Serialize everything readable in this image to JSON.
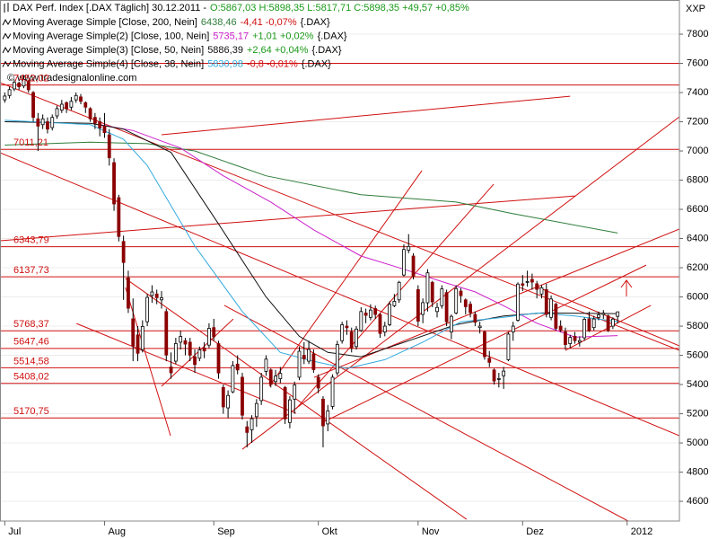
{
  "chart_data": {
    "type": "candlestick",
    "header": {
      "instrument": "DAX Perf. Index [.DAX Täglich] 30.12.2011 -",
      "quote": "O:5867,03 H:5898,35 L:5817,71 C:5898,35 +49,57 +0,85%",
      "quote_color": "#1a9a1a"
    },
    "credit": "© www.tradesignalonline.com",
    "axis_label": "XXP",
    "xlim": [
      -1,
      142
    ],
    "ylim": [
      4465,
      8034
    ],
    "yticks": [
      4600,
      4800,
      5000,
      5200,
      5400,
      5600,
      5800,
      6000,
      6200,
      6400,
      6600,
      6800,
      7000,
      7200,
      7400,
      7600,
      7800
    ],
    "xticks": [
      {
        "value": 0,
        "label": "Jul"
      },
      {
        "value": 21,
        "label": "Aug"
      },
      {
        "value": 44,
        "label": "Sep"
      },
      {
        "value": 66,
        "label": "Okt"
      },
      {
        "value": 87,
        "label": "Nov"
      },
      {
        "value": 109,
        "label": "Dez"
      },
      {
        "value": 131,
        "label": "2012"
      }
    ],
    "grid": true,
    "up_color": "#ffffff",
    "down_color": "#8b0000",
    "candles": [
      [
        7350,
        7400,
        7330,
        7376
      ],
      [
        7380,
        7440,
        7360,
        7420
      ],
      [
        7425,
        7490,
        7410,
        7470
      ],
      [
        7465,
        7475,
        7420,
        7440
      ],
      [
        7445,
        7520,
        7430,
        7490
      ],
      [
        7480,
        7485,
        7400,
        7419
      ],
      [
        7400,
        7410,
        7200,
        7230
      ],
      [
        7220,
        7260,
        7000,
        7170
      ],
      [
        7180,
        7250,
        7150,
        7220
      ],
      [
        7200,
        7230,
        7120,
        7150
      ],
      [
        7160,
        7250,
        7140,
        7230
      ],
      [
        7240,
        7310,
        7220,
        7290
      ],
      [
        7280,
        7350,
        7260,
        7320
      ],
      [
        7330,
        7340,
        7260,
        7290
      ],
      [
        7300,
        7370,
        7280,
        7340
      ],
      [
        7350,
        7400,
        7330,
        7380
      ],
      [
        7370,
        7390,
        7320,
        7340
      ],
      [
        7330,
        7340,
        7260,
        7300
      ],
      [
        7290,
        7300,
        7200,
        7220
      ],
      [
        7230,
        7260,
        7150,
        7190
      ],
      [
        7200,
        7230,
        7100,
        7158
      ],
      [
        7170,
        7260,
        7090,
        7126
      ],
      [
        7110,
        7150,
        6900,
        6953
      ],
      [
        6920,
        6950,
        6590,
        6637
      ],
      [
        6680,
        6700,
        6380,
        6414
      ],
      [
        6380,
        6420,
        5980,
        6236
      ],
      [
        6130,
        6180,
        5890,
        5923
      ],
      [
        5850,
        5990,
        5560,
        5664
      ],
      [
        5740,
        5800,
        5560,
        5614
      ],
      [
        5640,
        5840,
        5620,
        5798
      ],
      [
        5830,
        6020,
        5800,
        5997
      ],
      [
        6010,
        6080,
        5960,
        6034
      ],
      [
        6020,
        6050,
        5950,
        5995
      ],
      [
        5980,
        6040,
        5920,
        5994
      ],
      [
        5900,
        5920,
        5560,
        5602
      ],
      [
        5520,
        5620,
        5440,
        5480
      ],
      [
        5560,
        5720,
        5540,
        5681
      ],
      [
        5690,
        5770,
        5640,
        5729
      ],
      [
        5700,
        5720,
        5600,
        5677
      ],
      [
        5690,
        5720,
        5560,
        5601
      ],
      [
        5590,
        5640,
        5480,
        5537
      ],
      [
        5580,
        5660,
        5560,
        5637
      ],
      [
        5650,
        5690,
        5580,
        5630
      ],
      [
        5670,
        5820,
        5650,
        5785
      ],
      [
        5790,
        5850,
        5700,
        5727
      ],
      [
        5680,
        5700,
        5440,
        5479
      ],
      [
        5380,
        5400,
        5200,
        5247
      ],
      [
        5240,
        5360,
        5170,
        5325
      ],
      [
        5350,
        5560,
        5340,
        5530
      ],
      [
        5540,
        5600,
        5470,
        5500
      ],
      [
        5450,
        5480,
        5160,
        5190
      ],
      [
        5110,
        5150,
        4970,
        5072
      ],
      [
        5090,
        5190,
        5000,
        5166
      ],
      [
        5180,
        5300,
        5110,
        5270
      ],
      [
        5290,
        5480,
        5260,
        5450
      ],
      [
        5490,
        5600,
        5460,
        5574
      ],
      [
        5500,
        5510,
        5380,
        5401
      ],
      [
        5420,
        5500,
        5390,
        5458
      ],
      [
        5440,
        5520,
        5410,
        5476
      ],
      [
        5380,
        5390,
        5130,
        5164
      ],
      [
        5140,
        5320,
        5100,
        5295
      ],
      [
        5300,
        5420,
        5200,
        5397
      ],
      [
        5450,
        5660,
        5430,
        5628
      ],
      [
        5600,
        5690,
        5540,
        5576
      ],
      [
        5560,
        5700,
        5540,
        5640
      ],
      [
        5610,
        5640,
        5480,
        5502
      ],
      [
        5450,
        5470,
        5340,
        5376
      ],
      [
        5300,
        5320,
        4970,
        5117
      ],
      [
        5130,
        5260,
        5080,
        5220
      ],
      [
        5250,
        5470,
        5230,
        5450
      ],
      [
        5480,
        5700,
        5460,
        5675
      ],
      [
        5700,
        5830,
        5680,
        5810
      ],
      [
        5800,
        5840,
        5740,
        5789
      ],
      [
        5760,
        5790,
        5620,
        5650
      ],
      [
        5660,
        5800,
        5640,
        5780
      ],
      [
        5770,
        5930,
        5760,
        5900
      ],
      [
        5890,
        5920,
        5820,
        5874
      ],
      [
        5860,
        5950,
        5840,
        5910
      ],
      [
        5920,
        5940,
        5850,
        5880
      ],
      [
        5880,
        5890,
        5720,
        5750
      ],
      [
        5760,
        5830,
        5730,
        5800
      ],
      [
        5810,
        5970,
        5800,
        5950
      ],
      [
        5940,
        6020,
        5930,
        5970
      ],
      [
        5980,
        6110,
        5960,
        6100
      ],
      [
        6150,
        6360,
        6140,
        6325
      ],
      [
        6320,
        6430,
        6300,
        6346
      ],
      [
        6280,
        6300,
        6120,
        6141
      ],
      [
        6050,
        6080,
        5800,
        5834
      ],
      [
        5880,
        5990,
        5820,
        5961
      ],
      [
        5960,
        6190,
        5900,
        6165
      ],
      [
        6100,
        6110,
        5930,
        5966
      ],
      [
        5900,
        5960,
        5860,
        5928
      ],
      [
        5940,
        6080,
        5920,
        6055
      ],
      [
        6030,
        6050,
        5800,
        5829
      ],
      [
        5760,
        5880,
        5710,
        5867
      ],
      [
        5890,
        6080,
        5880,
        6057
      ],
      [
        6040,
        6060,
        5960,
        6009
      ],
      [
        5980,
        5990,
        5880,
        5933
      ],
      [
        5950,
        5970,
        5860,
        5893
      ],
      [
        5880,
        5900,
        5800,
        5827
      ],
      [
        5790,
        5830,
        5750,
        5800
      ],
      [
        5760,
        5770,
        5570,
        5591
      ],
      [
        5580,
        5630,
        5520,
        5552
      ],
      [
        5500,
        5510,
        5400,
        5424
      ],
      [
        5440,
        5480,
        5380,
        5441
      ],
      [
        5460,
        5520,
        5370,
        5492
      ],
      [
        5570,
        5760,
        5560,
        5745
      ],
      [
        5760,
        5830,
        5700,
        5800
      ],
      [
        5840,
        6100,
        5830,
        6088
      ],
      [
        6090,
        6150,
        6040,
        6080
      ],
      [
        6100,
        6180,
        6070,
        6106
      ],
      [
        6120,
        6160,
        6050,
        6102
      ],
      [
        6090,
        6110,
        5990,
        6052
      ],
      [
        6020,
        6080,
        5990,
        6063
      ],
      [
        6050,
        6090,
        5860,
        5881
      ],
      [
        5860,
        6010,
        5840,
        5986
      ],
      [
        5950,
        5960,
        5770,
        5785
      ],
      [
        5800,
        5840,
        5760,
        5774
      ],
      [
        5760,
        5790,
        5640,
        5674
      ],
      [
        5680,
        5740,
        5650,
        5723
      ],
      [
        5730,
        5760,
        5680,
        5701
      ],
      [
        5690,
        5730,
        5660,
        5701
      ],
      [
        5720,
        5860,
        5700,
        5847
      ],
      [
        5850,
        5900,
        5760,
        5767
      ],
      [
        5790,
        5870,
        5770,
        5849
      ],
      [
        5860,
        5900,
        5840,
        5878
      ],
      [
        5880,
        5910,
        5850,
        5889
      ],
      [
        5870,
        5880,
        5760,
        5771
      ],
      [
        5800,
        5860,
        5780,
        5848
      ],
      [
        5867,
        5898,
        5818,
        5898
      ]
    ],
    "series": [
      {
        "name": "Moving Average Simple [Close, 200, Nein]",
        "last_label": "6438,46",
        "change_label": "-4,41 -0,07%",
        "change_color": "#d01010",
        "symbol": "{.DAX}",
        "color": "#2e7d3a",
        "x": [
          0,
          18,
          30,
          40,
          55,
          75,
          95,
          107,
          129
        ],
        "values": [
          7040,
          7060,
          7050,
          7000,
          6830,
          6700,
          6650,
          6570,
          6438
        ]
      },
      {
        "name": "Moving Average Simple(2) [Close, 100, Nein]",
        "last_label": "5735,17",
        "change_label": "+1,01 +0,02%",
        "change_color": "#1a9a1a",
        "symbol": "{.DAX}",
        "color": "#cc22cc",
        "x": [
          20,
          27,
          37,
          46,
          56,
          65,
          75,
          84,
          93,
          99,
          105,
          112,
          120,
          129
        ],
        "values": [
          7180,
          7140,
          7020,
          6830,
          6650,
          6460,
          6280,
          6190,
          6095,
          6035,
          5940,
          5820,
          5725,
          5735
        ]
      },
      {
        "name": "Moving Average Simple(3) [Close, 50, Nein]",
        "last_label": "5886,39",
        "change_label": "+2,64 +0,04%",
        "change_color": "#1a9a1a",
        "symbol": "{.DAX}",
        "color": "#111111",
        "x": [
          0,
          18,
          25,
          35,
          45,
          55,
          62,
          68,
          75,
          85,
          95,
          105,
          113,
          129
        ],
        "values": [
          7200,
          7190,
          7150,
          6990,
          6500,
          6000,
          5730,
          5620,
          5590,
          5700,
          5810,
          5870,
          5890,
          5886
        ]
      },
      {
        "name": "Moving Average Simple(4) [Close, 38, Nein]",
        "last_label": "5830,98",
        "change_label": "-0,8 -0,01%",
        "change_color": "#d01010",
        "symbol": "{.DAX}",
        "color": "#33aadd",
        "x": [
          0,
          18,
          25,
          30,
          40,
          50,
          58,
          65,
          72,
          80,
          88,
          96,
          105,
          112,
          120,
          129
        ],
        "values": [
          7210,
          7180,
          7080,
          6900,
          6350,
          5900,
          5620,
          5560,
          5510,
          5570,
          5690,
          5830,
          5860,
          5890,
          5870,
          5831
        ]
      }
    ],
    "levels": [
      7452.02,
      7011.21,
      6343.79,
      6137.73,
      5768.37,
      5647.46,
      5514.58,
      5408.02,
      5170.75
    ],
    "level_labels": [
      "7452,02",
      "7011,21",
      "6343,79",
      "6137,73",
      "5768,37",
      "5647,46",
      "5514,58",
      "5408,02",
      "5170,75"
    ],
    "hlines": [
      7600
    ],
    "level_color": "#d01010",
    "trendlines": [
      [
        -1,
        7468,
        142,
        5634
      ],
      [
        -1,
        6988,
        142,
        5049
      ],
      [
        -1,
        6385,
        120,
        6692
      ],
      [
        33,
        7111,
        119,
        7375
      ],
      [
        25.4,
        6126,
        97.2,
        4477
      ],
      [
        46.2,
        5942,
        131.2,
        4465
      ],
      [
        50,
        4957,
        142,
        7234
      ],
      [
        65.1,
        5449,
        142,
        6465
      ],
      [
        67,
        5142,
        135,
        6218
      ],
      [
        55.7,
        5388,
        87.8,
        6865
      ],
      [
        61.3,
        5234,
        102.9,
        6772
      ],
      [
        25.4,
        6065,
        34.9,
        5049
      ],
      [
        15.1,
        5818,
        61.3,
        5203
      ],
      [
        33,
        5388,
        48.1,
        5849
      ],
      [
        112.3,
        6065,
        142,
        5665
      ],
      [
        118,
        5634,
        136,
        5942
      ]
    ]
  }
}
